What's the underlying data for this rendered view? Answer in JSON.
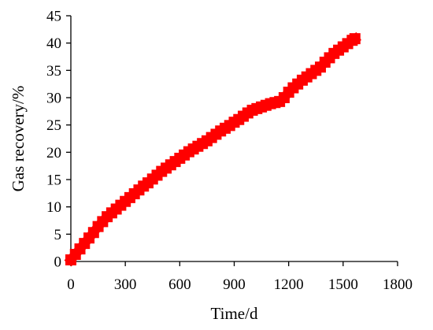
{
  "chart_data": {
    "type": "line",
    "xlabel": "Time/d",
    "ylabel": "Gas recovery/%",
    "xlim": [
      0,
      1800
    ],
    "ylim": [
      0,
      45
    ],
    "xticks": [
      0,
      300,
      600,
      900,
      1200,
      1500,
      1800
    ],
    "yticks": [
      0,
      5,
      10,
      15,
      20,
      25,
      30,
      35,
      40,
      45
    ],
    "grid": false,
    "legend": "none",
    "series": [
      {
        "color": "#ff0000",
        "marker": "square",
        "x": [
          0,
          25,
          50,
          75,
          100,
          125,
          150,
          175,
          200,
          225,
          250,
          275,
          300,
          325,
          350,
          375,
          400,
          425,
          450,
          475,
          500,
          525,
          550,
          575,
          600,
          625,
          650,
          675,
          700,
          725,
          750,
          775,
          800,
          825,
          850,
          875,
          900,
          925,
          950,
          975,
          1000,
          1025,
          1050,
          1075,
          1100,
          1125,
          1150,
          1175,
          1200,
          1225,
          1250,
          1275,
          1300,
          1325,
          1350,
          1375,
          1400,
          1425,
          1450,
          1475,
          1500,
          1525,
          1550,
          1565
        ],
        "y": [
          0.3,
          1.3,
          2.3,
          3.3,
          4.3,
          5.3,
          6.4,
          7.3,
          8.2,
          8.9,
          9.6,
          10.3,
          11.0,
          11.7,
          12.4,
          13.1,
          13.8,
          14.4,
          15.1,
          15.8,
          16.5,
          17.1,
          17.7,
          18.3,
          18.9,
          19.5,
          20.1,
          20.6,
          21.1,
          21.6,
          22.1,
          22.7,
          23.3,
          23.9,
          24.4,
          24.9,
          25.5,
          26.0,
          26.6,
          27.2,
          27.7,
          28.0,
          28.3,
          28.6,
          28.9,
          29.1,
          29.3,
          30.0,
          31.0,
          31.8,
          32.5,
          33.2,
          33.8,
          34.4,
          35.0,
          35.6,
          36.5,
          37.3,
          38.1,
          38.7,
          39.3,
          39.9,
          40.5,
          40.8
        ]
      }
    ]
  }
}
